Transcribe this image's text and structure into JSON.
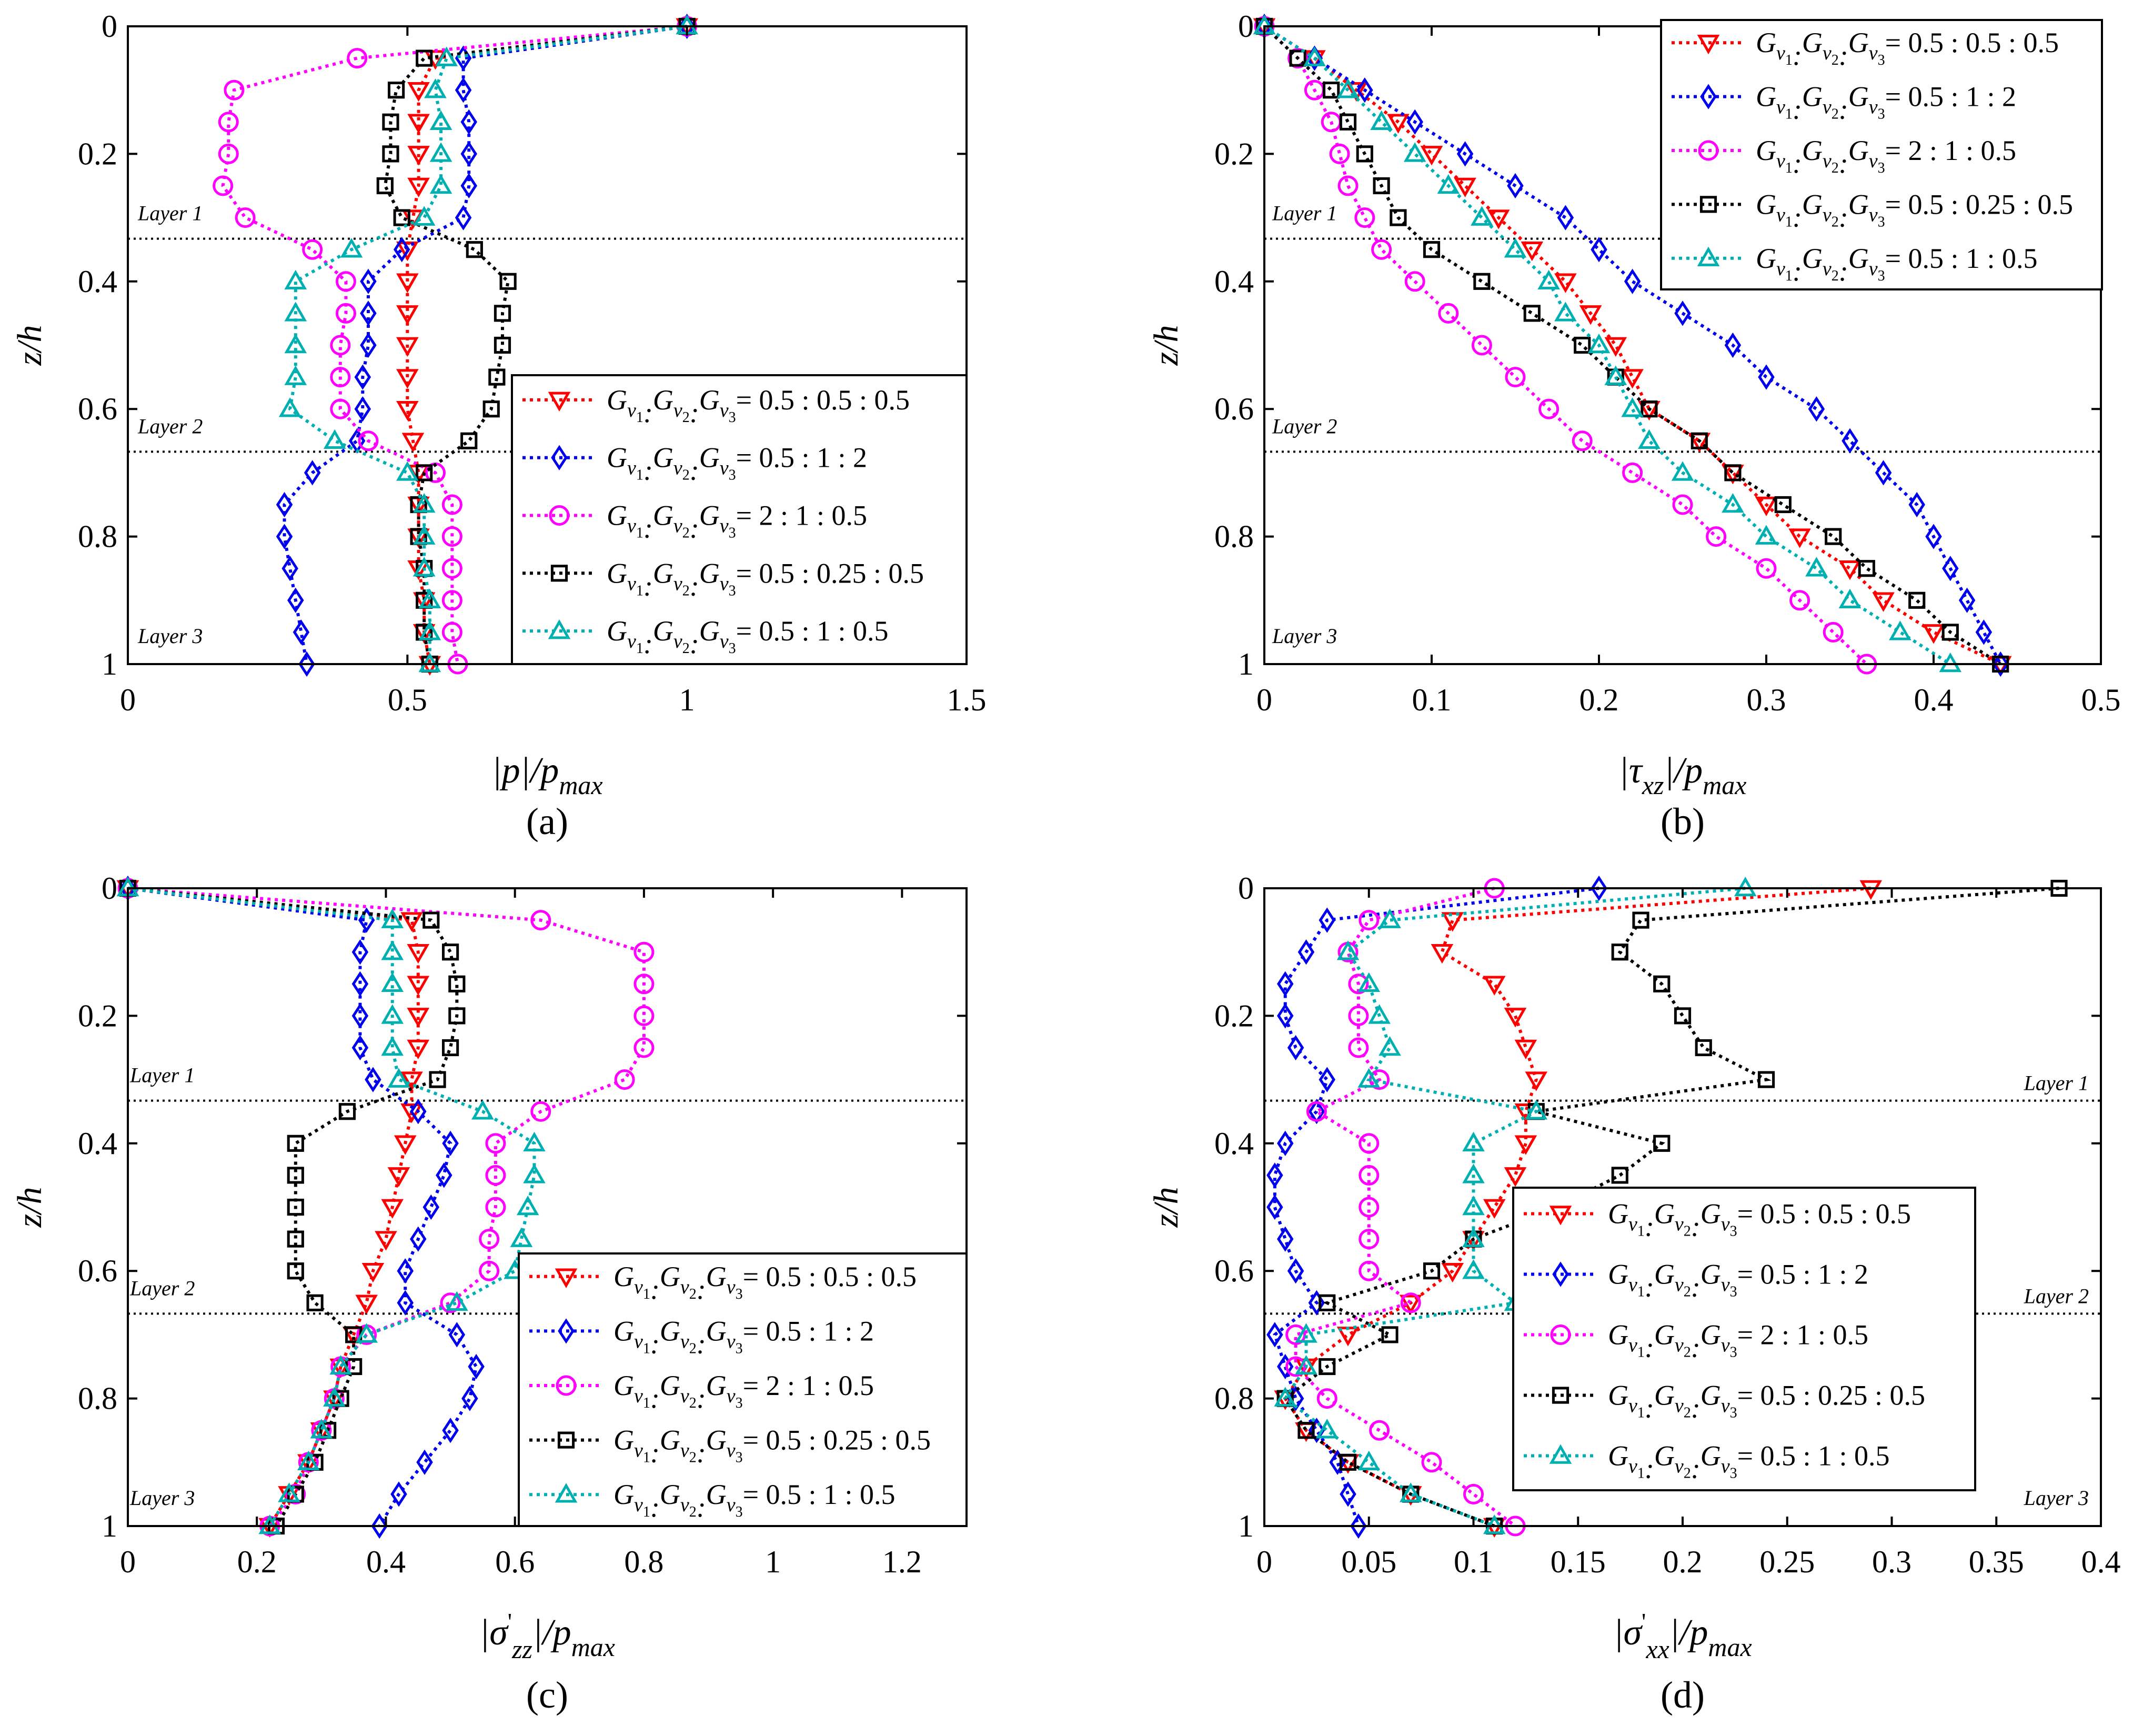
{
  "figure": {
    "panel_labels": [
      "(a)",
      "(b)",
      "(c)",
      "(d)"
    ]
  },
  "series_styles": [
    {
      "key": "s1",
      "color": "#ff0000",
      "marker": "triangle-down-icon"
    },
    {
      "key": "s2",
      "color": "#0000ee",
      "marker": "diamond-icon"
    },
    {
      "key": "s3",
      "color": "#ff00ff",
      "marker": "circle-icon"
    },
    {
      "key": "s4",
      "color": "#000000",
      "marker": "square-icon"
    },
    {
      "key": "s5",
      "color": "#00b0b0",
      "marker": "triangle-up-icon"
    }
  ],
  "legend_text": {
    "symbol": "G",
    "subscripts": [
      "v",
      "v",
      "v"
    ],
    "sub_indices": [
      "1",
      "2",
      "3"
    ],
    "ratios": [
      "= 0.5 : 0.5 : 0.5",
      "= 0.5 : 1 : 2",
      "= 2 : 1 : 0.5",
      "= 0.5 : 0.25 : 0.5",
      "= 0.5 : 1 : 0.5"
    ]
  },
  "layer_labels": [
    "Layer 1",
    "Layer 2",
    "Layer 3"
  ],
  "chart_data": [
    {
      "type": "line",
      "panel": "(a)",
      "ylabel": "z/h",
      "xlabel": "|p|/p_max",
      "xlabel_parts": {
        "a": "|p|/p",
        "sub": "max"
      },
      "xlim": [
        0,
        1.5
      ],
      "ylim": [
        0,
        1
      ],
      "xticks": [
        0,
        0.5,
        1,
        1.5
      ],
      "xtick_labels": [
        "0",
        "0.5",
        "1",
        "1.5"
      ],
      "yticks": [
        0,
        0.2,
        0.4,
        0.6,
        0.8,
        1
      ],
      "ytick_labels": [
        "0",
        "0.2",
        "0.4",
        "0.6",
        "0.8",
        "1"
      ],
      "layer_boundaries": [
        0.333,
        0.667
      ],
      "legend_position": "lower-right",
      "z": [
        0,
        0.05,
        0.1,
        0.15,
        0.2,
        0.25,
        0.3,
        0.35,
        0.4,
        0.45,
        0.5,
        0.55,
        0.6,
        0.65,
        0.7,
        0.75,
        0.8,
        0.85,
        0.9,
        0.95,
        1
      ],
      "series": [
        {
          "name": "Gv1:Gv2:Gv3 = 0.5 : 0.5 : 0.5",
          "values": [
            1.0,
            0.55,
            0.52,
            0.52,
            0.52,
            0.52,
            0.51,
            0.5,
            0.5,
            0.5,
            0.5,
            0.5,
            0.5,
            0.51,
            0.52,
            0.52,
            0.52,
            0.52,
            0.53,
            0.53,
            0.54
          ]
        },
        {
          "name": "Gv1:Gv2:Gv3 = 0.5 : 1 : 2",
          "values": [
            1.0,
            0.6,
            0.6,
            0.61,
            0.61,
            0.61,
            0.6,
            0.49,
            0.43,
            0.43,
            0.43,
            0.42,
            0.42,
            0.41,
            0.33,
            0.28,
            0.28,
            0.29,
            0.3,
            0.31,
            0.32
          ]
        },
        {
          "name": "Gv1:Gv2:Gv3 = 2 : 1 : 0.5",
          "values": [
            1.0,
            0.41,
            0.19,
            0.18,
            0.18,
            0.17,
            0.21,
            0.33,
            0.39,
            0.39,
            0.38,
            0.38,
            0.38,
            0.43,
            0.55,
            0.58,
            0.58,
            0.58,
            0.58,
            0.58,
            0.59
          ]
        },
        {
          "name": "Gv1:Gv2:Gv3 = 0.5 : 0.25 : 0.5",
          "values": [
            1.0,
            0.53,
            0.48,
            0.47,
            0.47,
            0.46,
            0.49,
            0.62,
            0.68,
            0.67,
            0.67,
            0.66,
            0.65,
            0.61,
            0.53,
            0.52,
            0.52,
            0.53,
            0.53,
            0.53,
            0.54
          ]
        },
        {
          "name": "Gv1:Gv2:Gv3 = 0.5 : 1 : 0.5",
          "values": [
            1.0,
            0.57,
            0.55,
            0.56,
            0.56,
            0.56,
            0.53,
            0.4,
            0.3,
            0.3,
            0.3,
            0.3,
            0.29,
            0.37,
            0.5,
            0.53,
            0.53,
            0.53,
            0.54,
            0.54,
            0.54
          ]
        }
      ]
    },
    {
      "type": "line",
      "panel": "(b)",
      "ylabel": "z/h",
      "xlabel": "|τxz|/p_max",
      "xlabel_parts": {
        "a": "|τ",
        "sub1": "xz",
        "b": "|/p",
        "sub2": "max"
      },
      "xlim": [
        0,
        0.5
      ],
      "ylim": [
        0,
        1
      ],
      "xticks": [
        0,
        0.1,
        0.2,
        0.3,
        0.4,
        0.5
      ],
      "xtick_labels": [
        "0",
        "0.1",
        "0.2",
        "0.3",
        "0.4",
        "0.5"
      ],
      "yticks": [
        0,
        0.2,
        0.4,
        0.6,
        0.8,
        1
      ],
      "ytick_labels": [
        "0",
        "0.2",
        "0.4",
        "0.6",
        "0.8",
        "1"
      ],
      "layer_boundaries": [
        0.333,
        0.667
      ],
      "legend_position": "top-right",
      "z": [
        0,
        0.05,
        0.1,
        0.15,
        0.2,
        0.25,
        0.3,
        0.35,
        0.4,
        0.45,
        0.5,
        0.55,
        0.6,
        0.65,
        0.7,
        0.75,
        0.8,
        0.85,
        0.9,
        0.95,
        1
      ],
      "series": [
        {
          "name": "Gv1:Gv2:Gv3 = 0.5 : 0.5 : 0.5",
          "values": [
            0,
            0.03,
            0.055,
            0.08,
            0.1,
            0.12,
            0.14,
            0.16,
            0.18,
            0.195,
            0.21,
            0.22,
            0.23,
            0.26,
            0.28,
            0.3,
            0.32,
            0.35,
            0.37,
            0.4,
            0.44
          ]
        },
        {
          "name": "Gv1:Gv2:Gv3 = 0.5 : 1 : 2",
          "values": [
            0,
            0.03,
            0.06,
            0.09,
            0.12,
            0.15,
            0.18,
            0.2,
            0.22,
            0.25,
            0.28,
            0.3,
            0.33,
            0.35,
            0.37,
            0.39,
            0.4,
            0.41,
            0.42,
            0.43,
            0.44
          ]
        },
        {
          "name": "Gv1:Gv2:Gv3 = 2 : 1 : 0.5",
          "values": [
            0,
            0.02,
            0.03,
            0.04,
            0.045,
            0.05,
            0.06,
            0.07,
            0.09,
            0.11,
            0.13,
            0.15,
            0.17,
            0.19,
            0.22,
            0.25,
            0.27,
            0.3,
            0.32,
            0.34,
            0.36
          ]
        },
        {
          "name": "Gv1:Gv2:Gv3 = 0.5 : 0.25 : 0.5",
          "values": [
            0,
            0.02,
            0.04,
            0.05,
            0.06,
            0.07,
            0.08,
            0.1,
            0.13,
            0.16,
            0.19,
            0.21,
            0.23,
            0.26,
            0.28,
            0.31,
            0.34,
            0.36,
            0.39,
            0.41,
            0.44
          ]
        },
        {
          "name": "Gv1:Gv2:Gv3 = 0.5 : 1 : 0.5",
          "values": [
            0,
            0.03,
            0.05,
            0.07,
            0.09,
            0.11,
            0.13,
            0.15,
            0.17,
            0.18,
            0.2,
            0.21,
            0.22,
            0.23,
            0.25,
            0.28,
            0.3,
            0.33,
            0.35,
            0.38,
            0.41
          ]
        }
      ]
    },
    {
      "type": "line",
      "panel": "(c)",
      "ylabel": "z/h",
      "xlabel": "|σ'zz|/p_max",
      "xlabel_parts": {
        "a": "|σ",
        "prime": "'",
        "sub1": "zz",
        "b": "|/p",
        "sub2": "max"
      },
      "xlim": [
        0,
        1.3
      ],
      "ylim": [
        0,
        1
      ],
      "xticks": [
        0,
        0.2,
        0.4,
        0.6,
        0.8,
        1,
        1.2
      ],
      "xtick_labels": [
        "0",
        "0.2",
        "0.4",
        "0.6",
        "0.8",
        "1",
        "1.2"
      ],
      "yticks": [
        0,
        0.2,
        0.4,
        0.6,
        0.8,
        1
      ],
      "ytick_labels": [
        "0",
        "0.2",
        "0.4",
        "0.6",
        "0.8",
        "1"
      ],
      "layer_boundaries": [
        0.333,
        0.667
      ],
      "legend_position": "lower-right",
      "z": [
        0,
        0.05,
        0.1,
        0.15,
        0.2,
        0.25,
        0.3,
        0.35,
        0.4,
        0.45,
        0.5,
        0.55,
        0.6,
        0.65,
        0.7,
        0.75,
        0.8,
        0.85,
        0.9,
        0.95,
        1
      ],
      "series": [
        {
          "name": "Gv1:Gv2:Gv3 = 0.5 : 0.5 : 0.5",
          "values": [
            0,
            0.44,
            0.45,
            0.45,
            0.45,
            0.45,
            0.44,
            0.44,
            0.43,
            0.42,
            0.41,
            0.4,
            0.38,
            0.37,
            0.35,
            0.33,
            0.32,
            0.3,
            0.28,
            0.25,
            0.22
          ]
        },
        {
          "name": "Gv1:Gv2:Gv3 = 0.5 : 1 : 2",
          "values": [
            0,
            0.37,
            0.36,
            0.36,
            0.36,
            0.36,
            0.38,
            0.45,
            0.5,
            0.49,
            0.47,
            0.45,
            0.43,
            0.43,
            0.51,
            0.54,
            0.53,
            0.5,
            0.46,
            0.42,
            0.39
          ]
        },
        {
          "name": "Gv1:Gv2:Gv3 = 2 : 1 : 0.5",
          "values": [
            0,
            0.64,
            0.8,
            0.8,
            0.8,
            0.8,
            0.77,
            0.64,
            0.57,
            0.57,
            0.57,
            0.56,
            0.56,
            0.5,
            0.37,
            0.33,
            0.32,
            0.3,
            0.28,
            0.26,
            0.22
          ]
        },
        {
          "name": "Gv1:Gv2:Gv3 = 0.5 : 0.25 : 0.5",
          "values": [
            0,
            0.47,
            0.5,
            0.51,
            0.51,
            0.5,
            0.48,
            0.34,
            0.26,
            0.26,
            0.26,
            0.26,
            0.26,
            0.29,
            0.35,
            0.35,
            0.33,
            0.31,
            0.29,
            0.26,
            0.23
          ]
        },
        {
          "name": "Gv1:Gv2:Gv3 = 0.5 : 1 : 0.5",
          "values": [
            0,
            0.41,
            0.41,
            0.41,
            0.41,
            0.41,
            0.42,
            0.55,
            0.63,
            0.63,
            0.62,
            0.61,
            0.6,
            0.51,
            0.37,
            0.33,
            0.32,
            0.3,
            0.28,
            0.25,
            0.22
          ]
        }
      ]
    },
    {
      "type": "line",
      "panel": "(d)",
      "ylabel": "z/h",
      "xlabel": "|σ'xx|/p_max",
      "xlabel_parts": {
        "a": "|σ",
        "prime": "'",
        "sub1": "xx",
        "b": "|/p",
        "sub2": "max"
      },
      "xlim": [
        0,
        0.4
      ],
      "ylim": [
        0,
        1
      ],
      "xticks": [
        0,
        0.05,
        0.1,
        0.15,
        0.2,
        0.25,
        0.3,
        0.35,
        0.4
      ],
      "xtick_labels": [
        "0",
        "0.05",
        "0.1",
        "0.15",
        "0.2",
        "0.25",
        "0.3",
        "0.35",
        "0.4"
      ],
      "yticks": [
        0,
        0.2,
        0.4,
        0.6,
        0.8,
        1
      ],
      "ytick_labels": [
        "0",
        "0.2",
        "0.4",
        "0.6",
        "0.8",
        "1"
      ],
      "layer_boundaries": [
        0.333,
        0.667
      ],
      "legend_position": "lower-center",
      "z": [
        0,
        0.05,
        0.1,
        0.15,
        0.2,
        0.25,
        0.3,
        0.35,
        0.4,
        0.45,
        0.5,
        0.55,
        0.6,
        0.65,
        0.7,
        0.75,
        0.8,
        0.85,
        0.9,
        0.95,
        1
      ],
      "series": [
        {
          "name": "Gv1:Gv2:Gv3 = 0.5 : 0.5 : 0.5",
          "values": [
            0.29,
            0.09,
            0.085,
            0.11,
            0.12,
            0.125,
            0.13,
            0.125,
            0.125,
            0.12,
            0.11,
            0.1,
            0.09,
            0.07,
            0.04,
            0.02,
            0.01,
            0.02,
            0.04,
            0.07,
            0.11
          ]
        },
        {
          "name": "Gv1:Gv2:Gv3 = 0.5 : 1 : 2",
          "values": [
            0.16,
            0.03,
            0.02,
            0.01,
            0.01,
            0.015,
            0.03,
            0.025,
            0.01,
            0.005,
            0.005,
            0.01,
            0.015,
            0.025,
            0.005,
            0.01,
            0.015,
            0.025,
            0.035,
            0.04,
            0.045
          ]
        },
        {
          "name": "Gv1:Gv2:Gv3 = 2 : 1 : 0.5",
          "values": [
            0.11,
            0.05,
            0.04,
            0.045,
            0.045,
            0.045,
            0.055,
            0.025,
            0.05,
            0.05,
            0.05,
            0.05,
            0.05,
            0.07,
            0.015,
            0.015,
            0.03,
            0.055,
            0.08,
            0.1,
            0.12
          ]
        },
        {
          "name": "Gv1:Gv2:Gv3 = 0.5 : 0.25 : 0.5",
          "values": [
            0.38,
            0.18,
            0.17,
            0.19,
            0.2,
            0.21,
            0.24,
            0.13,
            0.19,
            0.17,
            0.14,
            0.1,
            0.08,
            0.03,
            0.06,
            0.03,
            0.01,
            0.02,
            0.04,
            0.07,
            0.11
          ]
        },
        {
          "name": "Gv1:Gv2:Gv3 = 0.5 : 1 : 0.5",
          "values": [
            0.23,
            0.06,
            0.04,
            0.05,
            0.055,
            0.06,
            0.05,
            0.13,
            0.1,
            0.1,
            0.1,
            0.1,
            0.1,
            0.12,
            0.02,
            0.02,
            0.01,
            0.03,
            0.05,
            0.07,
            0.11
          ]
        }
      ]
    }
  ]
}
